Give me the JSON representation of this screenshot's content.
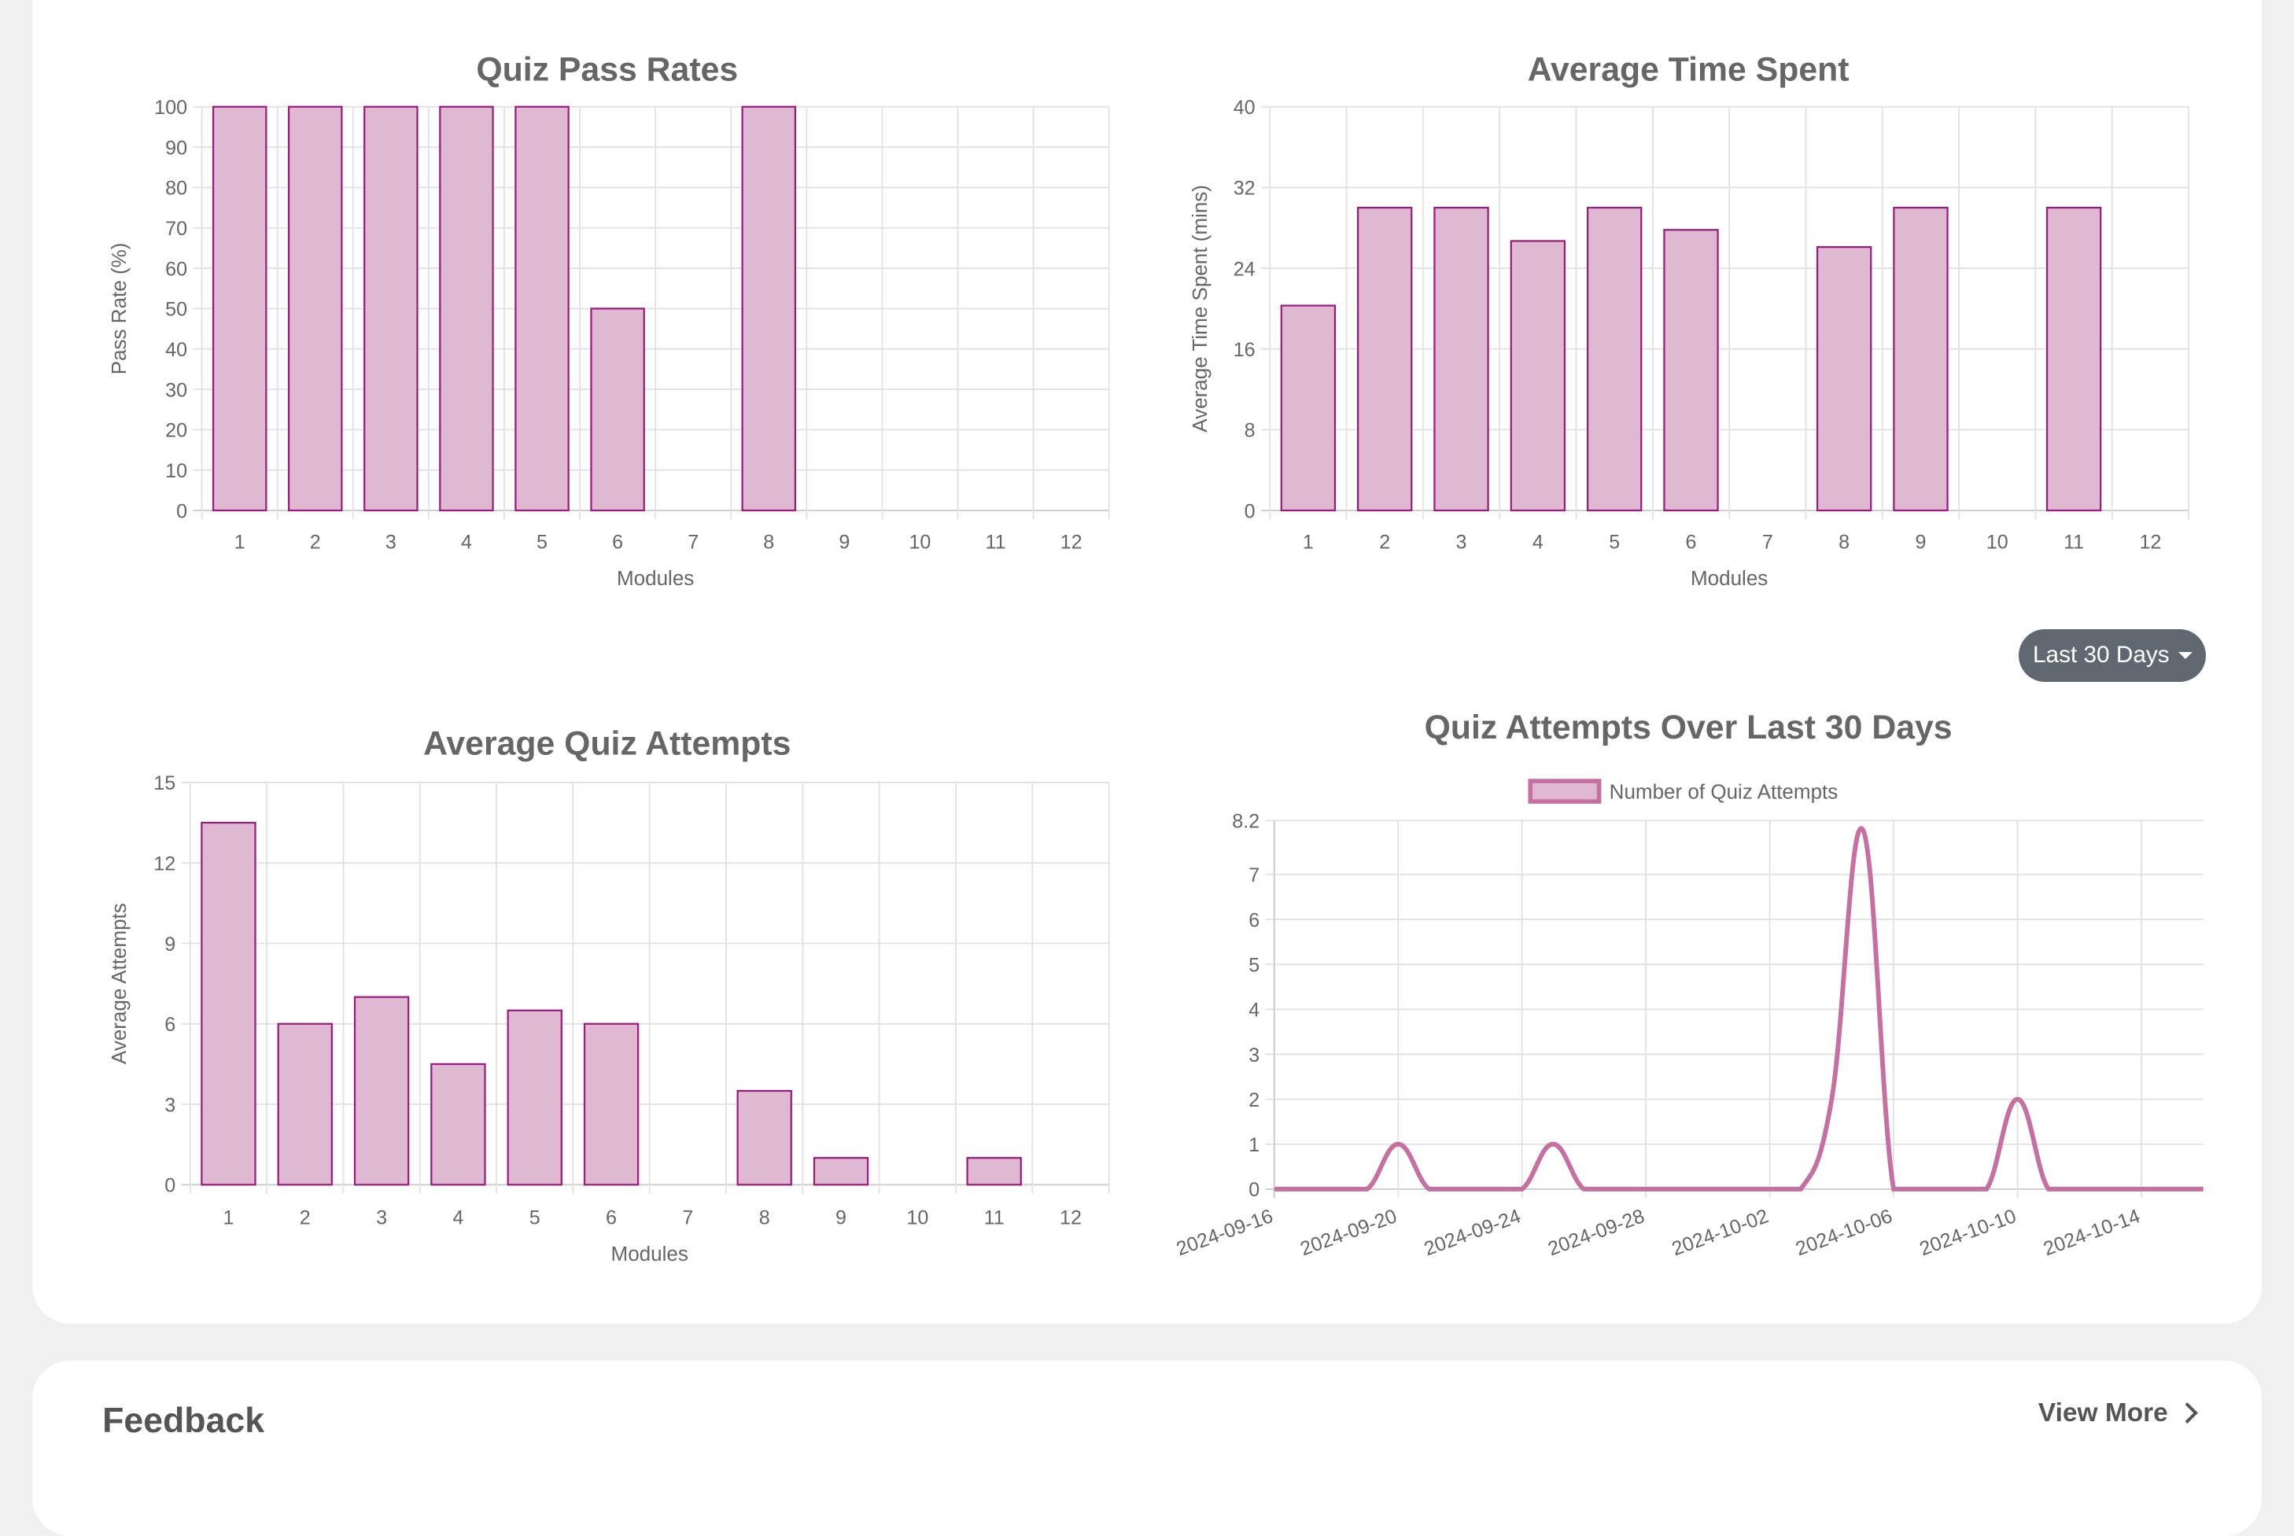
{
  "colors": {
    "bar_fill": "#dfb8d2",
    "bar_border": "#9c1a7d",
    "line": "#c570a0",
    "grid": "#e2e2e2",
    "button": "#5f6770"
  },
  "range_dropdown": {
    "label": "Last 30 Days"
  },
  "feedback": {
    "title": "Feedback",
    "view_more": "View More"
  },
  "chart_data": [
    {
      "type": "bar",
      "title": "Quiz Pass Rates",
      "xlabel": "Modules",
      "ylabel": "Pass Rate (%)",
      "categories": [
        "1",
        "2",
        "3",
        "4",
        "5",
        "6",
        "7",
        "8",
        "9",
        "10",
        "11",
        "12"
      ],
      "values": [
        100,
        100,
        100,
        100,
        100,
        50,
        0,
        100,
        0,
        0,
        0,
        0
      ],
      "ylim": [
        0,
        100
      ],
      "yticks": [
        0,
        10,
        20,
        30,
        40,
        50,
        60,
        70,
        80,
        90,
        100
      ],
      "grid": true
    },
    {
      "type": "bar",
      "title": "Average Time Spent",
      "xlabel": "Modules",
      "ylabel": "Average Time Spent (mins)",
      "categories": [
        "1",
        "2",
        "3",
        "4",
        "5",
        "6",
        "7",
        "8",
        "9",
        "10",
        "11",
        "12"
      ],
      "values": [
        20.3,
        30,
        30,
        26.7,
        30,
        27.8,
        0,
        26.1,
        30,
        0,
        30,
        0
      ],
      "ylim": [
        0,
        40
      ],
      "yticks": [
        0,
        8,
        16,
        24,
        32,
        40
      ],
      "grid": true
    },
    {
      "type": "bar",
      "title": "Average Quiz Attempts",
      "xlabel": "Modules",
      "ylabel": "Average Attempts",
      "categories": [
        "1",
        "2",
        "3",
        "4",
        "5",
        "6",
        "7",
        "8",
        "9",
        "10",
        "11",
        "12"
      ],
      "values": [
        13.5,
        6,
        7,
        4.5,
        6.5,
        6,
        0,
        3.5,
        1,
        0,
        1,
        0
      ],
      "ylim": [
        0,
        15
      ],
      "yticks": [
        0,
        3,
        6,
        9,
        12,
        15
      ],
      "grid": true
    },
    {
      "type": "line",
      "title": "Quiz Attempts Over Last 30 Days",
      "legend": "top",
      "series": [
        {
          "name": "Number of Quiz Attempts",
          "x": [
            "2024-09-16",
            "2024-09-17",
            "2024-09-18",
            "2024-09-19",
            "2024-09-20",
            "2024-09-21",
            "2024-09-22",
            "2024-09-23",
            "2024-09-24",
            "2024-09-25",
            "2024-09-26",
            "2024-09-27",
            "2024-09-28",
            "2024-09-29",
            "2024-09-30",
            "2024-10-01",
            "2024-10-02",
            "2024-10-03",
            "2024-10-04",
            "2024-10-05",
            "2024-10-06",
            "2024-10-07",
            "2024-10-08",
            "2024-10-09",
            "2024-10-10",
            "2024-10-11",
            "2024-10-12",
            "2024-10-13",
            "2024-10-14",
            "2024-10-15",
            "2024-10-16"
          ],
          "values": [
            0,
            0,
            0,
            0,
            1,
            0,
            0,
            0,
            0,
            1,
            0,
            0,
            0,
            0,
            0,
            0,
            0,
            0,
            2,
            8,
            0,
            0,
            0,
            0,
            2,
            0,
            0,
            0,
            0,
            0,
            0
          ]
        }
      ],
      "xticks": [
        "2024-09-16",
        "2024-09-20",
        "2024-09-24",
        "2024-09-28",
        "2024-10-02",
        "2024-10-06",
        "2024-10-10",
        "2024-10-14"
      ],
      "ylim": [
        0,
        8.2
      ],
      "yticks": [
        "0",
        "1",
        "2",
        "3",
        "4",
        "5",
        "6",
        "7",
        "8.2"
      ],
      "grid": true
    }
  ]
}
